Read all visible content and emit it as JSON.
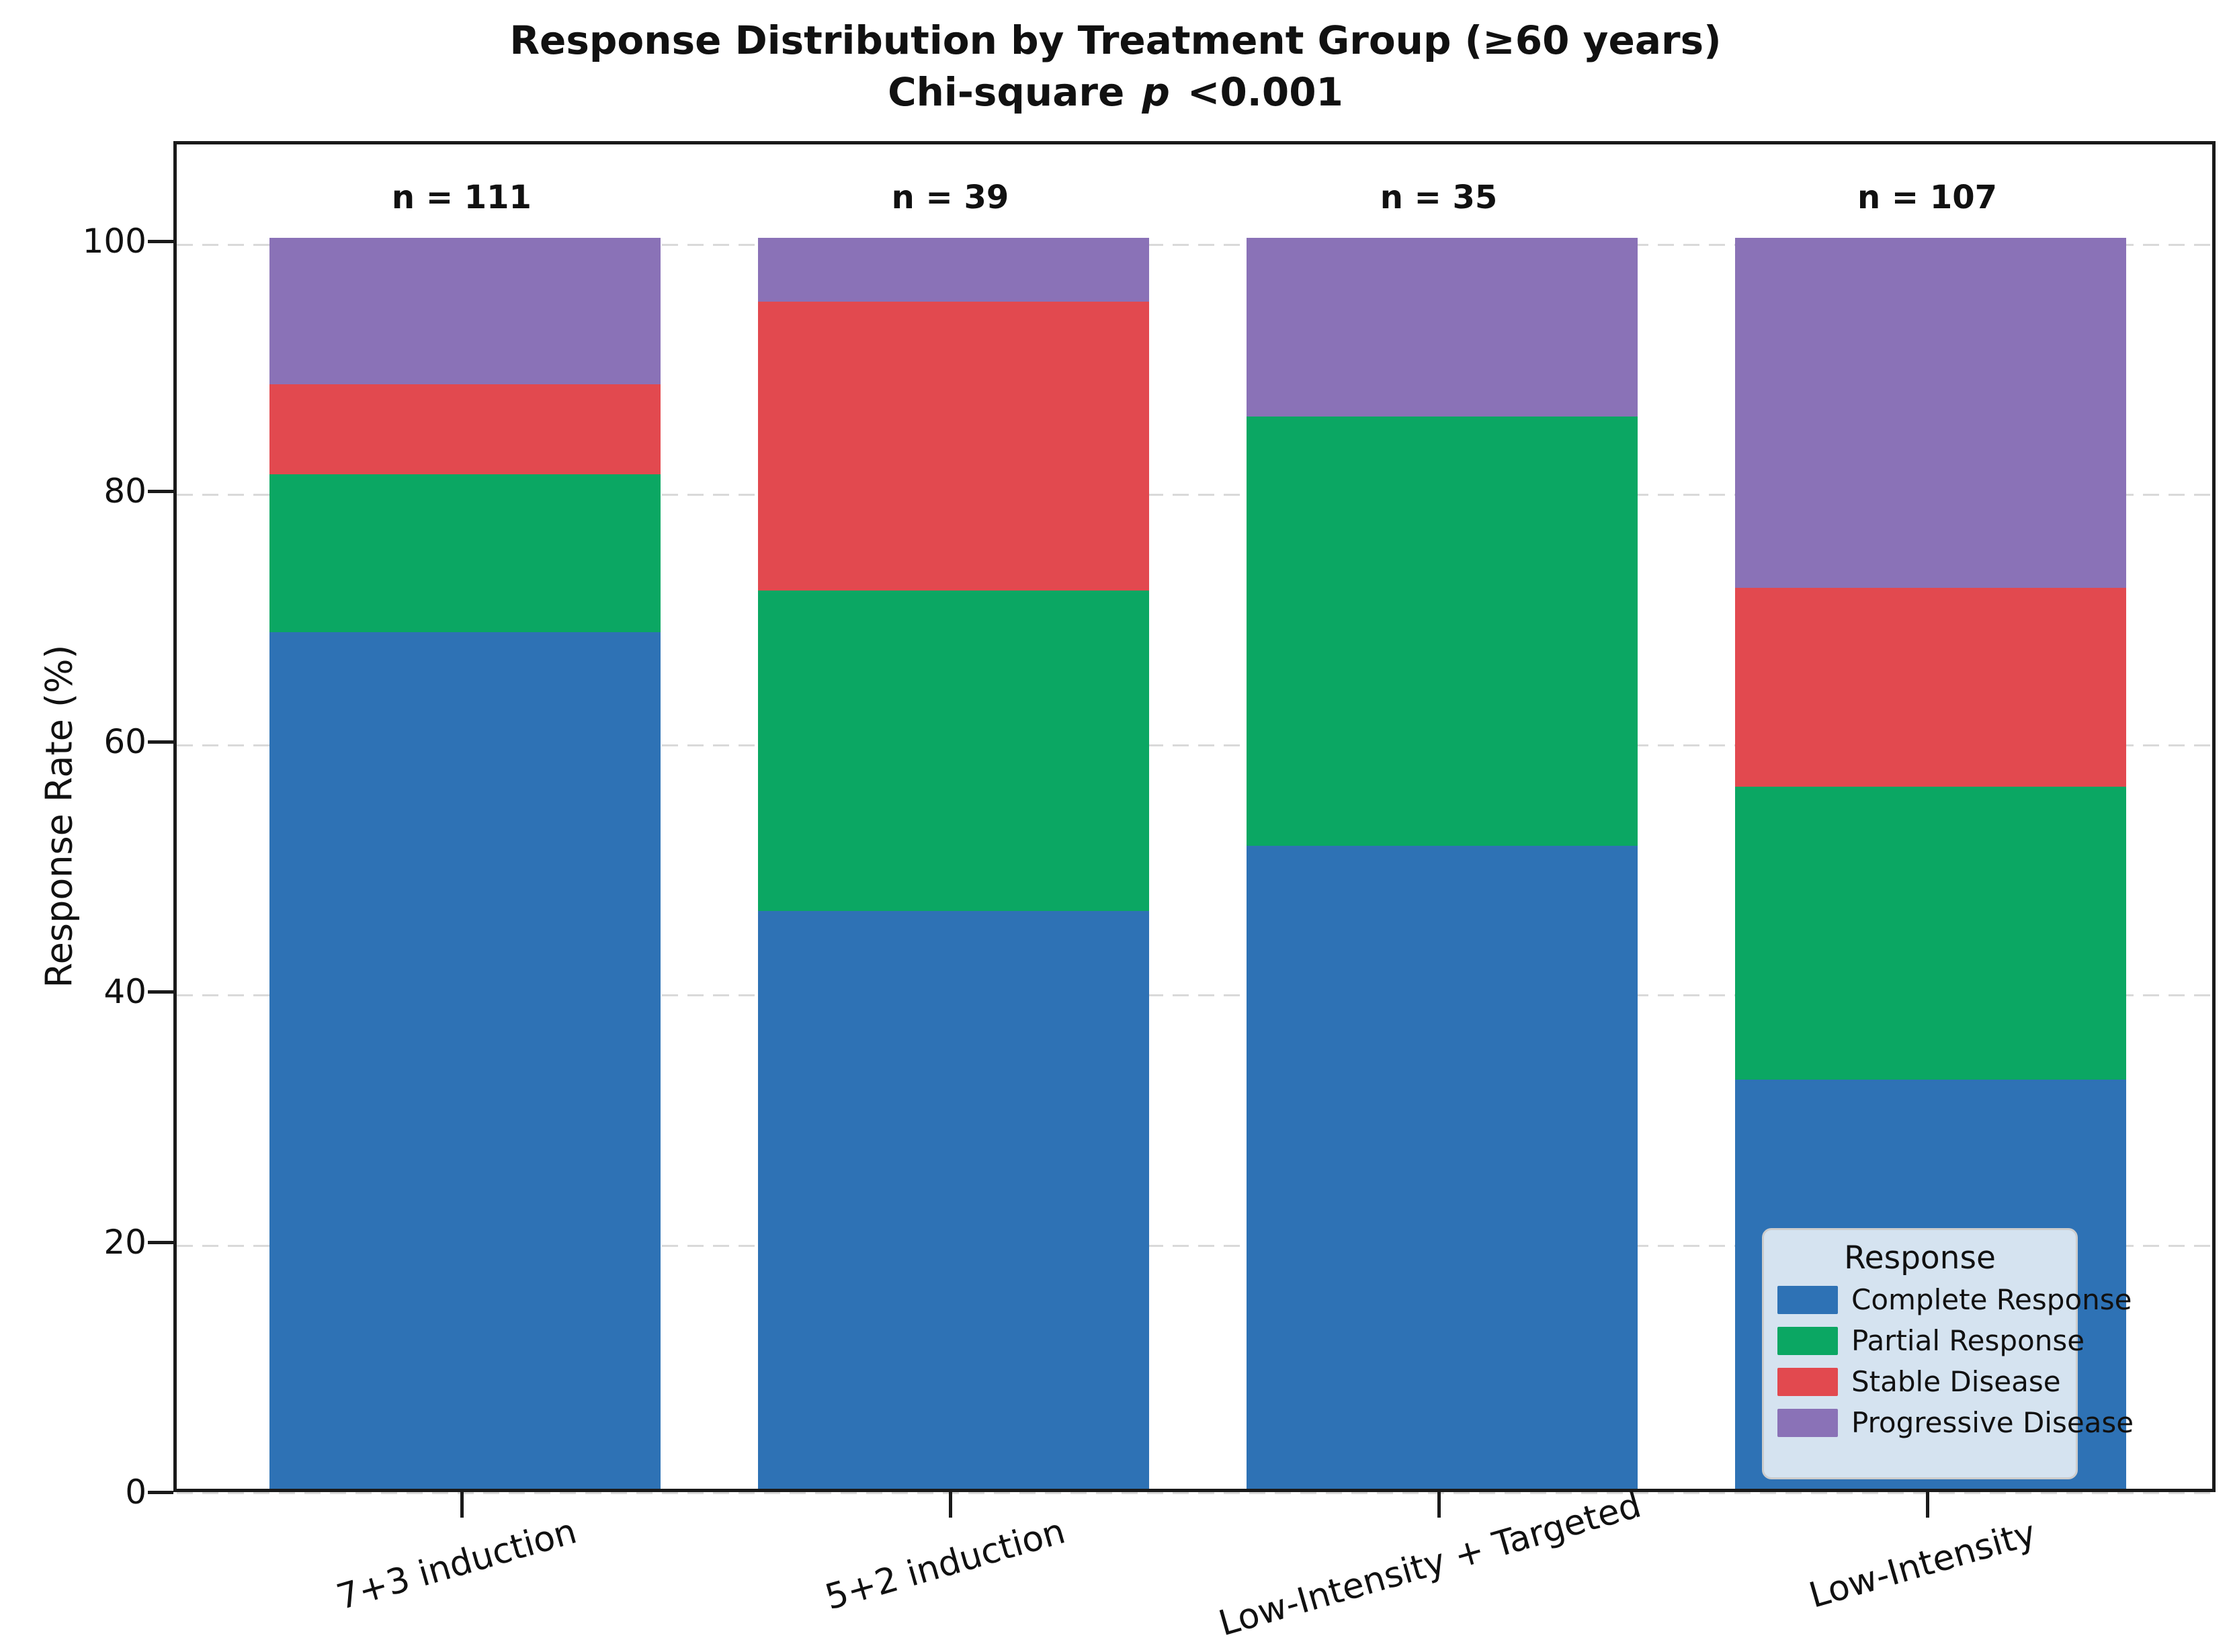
{
  "title": "Response Distribution by Treatment Group (≥60 years)",
  "subtitle": {
    "prefix": "Chi-square",
    "stat_symbol": "p",
    "value": "<0.001"
  },
  "y_axis": {
    "label": "Response Rate (%)",
    "ticks": [
      0,
      20,
      40,
      60,
      80,
      100
    ],
    "max_display": 108
  },
  "legend": {
    "title": "Response",
    "entries": [
      "Complete Response",
      "Partial Response",
      "Stable Disease",
      "Progressive Disease"
    ]
  },
  "chart_data": {
    "type": "bar",
    "stacked": true,
    "title": "Response Distribution by Treatment Group (≥60 years)\nChi-square p <0.001",
    "xlabel": "",
    "ylabel": "Response Rate (%)",
    "ylim": [
      0,
      108
    ],
    "grid": "dashed horizontal at y ticks",
    "legend_position": "lower right",
    "categories": [
      "7+3 induction",
      "5+2 induction",
      "Low-Intensity + Targeted",
      "Low-Intensity"
    ],
    "n_labels": [
      "n = 111",
      "n = 39",
      "n = 35",
      "n = 107"
    ],
    "group_sizes": [
      111,
      39,
      35,
      107
    ],
    "series": [
      {
        "name": "Complete Response",
        "color": "#2E72B5",
        "values": [
          68.5,
          46.2,
          51.4,
          32.7
        ]
      },
      {
        "name": "Partial Response",
        "color": "#0BA763",
        "values": [
          12.6,
          25.6,
          34.3,
          23.4
        ]
      },
      {
        "name": "Stable Disease",
        "color": "#E2494F",
        "values": [
          7.2,
          23.1,
          0.0,
          15.9
        ]
      },
      {
        "name": "Progressive Disease",
        "color": "#8A72B7",
        "values": [
          11.7,
          5.1,
          14.3,
          28.0
        ]
      }
    ]
  }
}
